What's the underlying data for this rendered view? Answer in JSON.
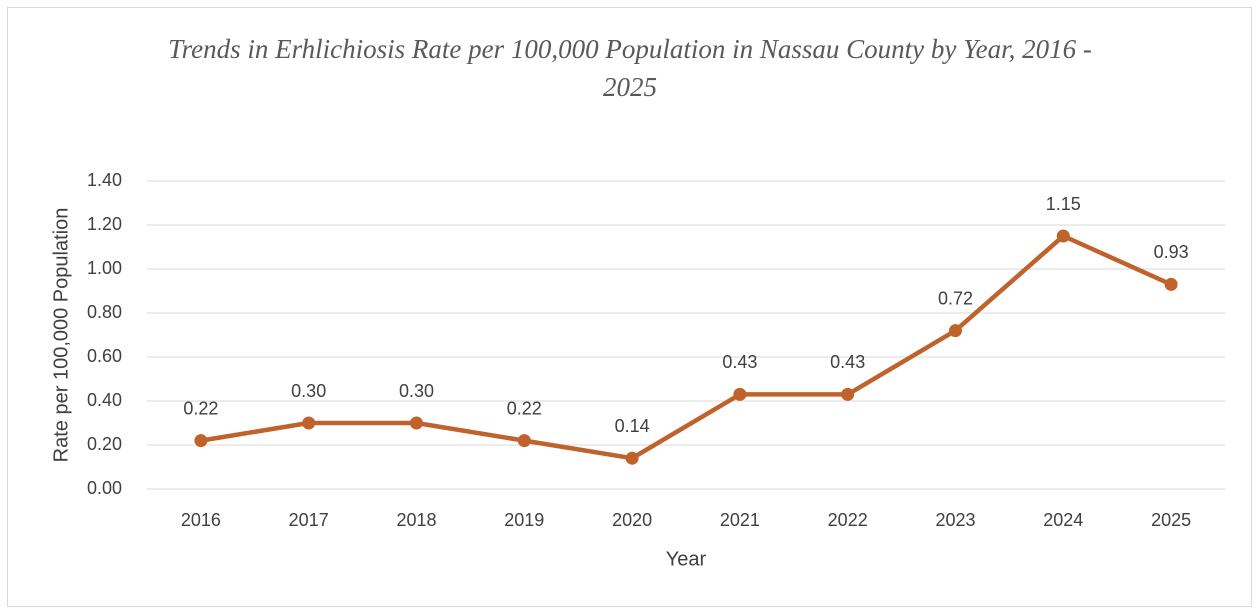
{
  "chart_data": {
    "type": "line",
    "title": "Trends in Erhlichiosis Rate per 100,000 Population in Nassau County by Year, 2016 - 2025",
    "x_label": "Year",
    "y_label": "Rate per 100,000 Population",
    "categories": [
      "2016",
      "2017",
      "2018",
      "2019",
      "2020",
      "2021",
      "2022",
      "2023",
      "2024",
      "2025"
    ],
    "values": [
      0.22,
      0.3,
      0.3,
      0.22,
      0.14,
      0.43,
      0.43,
      0.72,
      1.15,
      0.93
    ],
    "value_labels": [
      "0.22",
      "0.30",
      "0.30",
      "0.22",
      "0.14",
      "0.43",
      "0.43",
      "0.72",
      "1.15",
      "0.93"
    ],
    "color": "#c0622b",
    "ylim": [
      0,
      1.4
    ],
    "yticks": [
      {
        "value": 0,
        "label": "0.00"
      },
      {
        "value": 0.2,
        "label": "0.20"
      },
      {
        "value": 0.4,
        "label": "0.40"
      },
      {
        "value": 0.6,
        "label": "0.60"
      },
      {
        "value": 0.8,
        "label": "0.80"
      },
      {
        "value": 1.0,
        "label": "1.00"
      },
      {
        "value": 1.2,
        "label": "1.20"
      },
      {
        "value": 1.4,
        "label": "1.40"
      }
    ],
    "grid": true
  }
}
